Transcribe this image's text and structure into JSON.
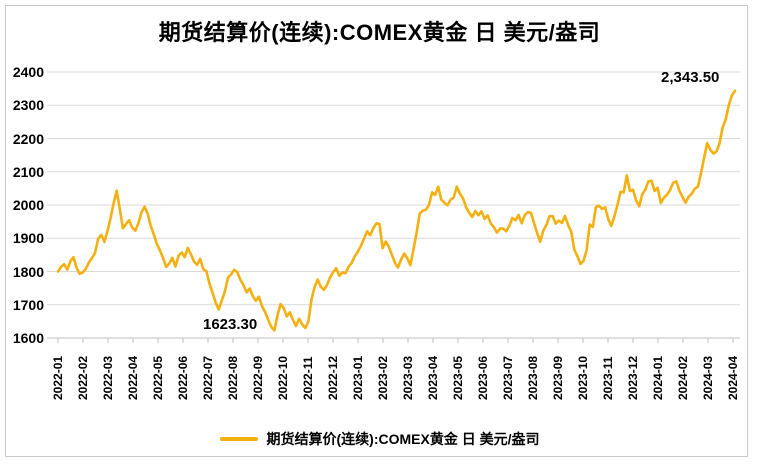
{
  "window": {
    "background": "#ffffff",
    "frame_border_color": "#c8c8c8"
  },
  "title": "期货结算价(连续):COMEX黄金 日 美元/盎司",
  "legend": {
    "label": "期货结算价(连续):COMEX黄金 日 美元/盎司"
  },
  "chart_data": {
    "type": "line",
    "title": "期货结算价(连续):COMEX黄金 日 美元/盎司",
    "xlabel": "",
    "ylabel": "",
    "ylim": [
      1600,
      2400
    ],
    "y_ticks": [
      1600,
      1700,
      1800,
      1900,
      2000,
      2100,
      2200,
      2300,
      2400
    ],
    "grid": "horizontal",
    "grid_color": "#d9d9d9",
    "axis_color": "#bfbfbf",
    "legend_position": "bottom",
    "x_tick_labels": [
      "2022-01",
      "2022-02",
      "2022-03",
      "2022-04",
      "2022-05",
      "2022-06",
      "2022-07",
      "2022-08",
      "2022-09",
      "2022-10",
      "2022-11",
      "2022-12",
      "2023-01",
      "2023-02",
      "2023-03",
      "2023-04",
      "2023-05",
      "2023-06",
      "2023-07",
      "2023-08",
      "2023-09",
      "2023-10",
      "2023-11",
      "2023-12",
      "2024-01",
      "2024-02",
      "2024-03",
      "2024-04"
    ],
    "points_per_month": 8,
    "series": [
      {
        "name": "期货结算价(连续):COMEX黄金 日 美元/盎司",
        "color": "#F4B011",
        "values": [
          1800,
          1814,
          1822,
          1806,
          1831,
          1843,
          1812,
          1793,
          1797,
          1808,
          1827,
          1841,
          1856,
          1899,
          1910,
          1889,
          1922,
          1961,
          2005,
          2043,
          1988,
          1930,
          1943,
          1954,
          1932,
          1923,
          1945,
          1978,
          1995,
          1974,
          1938,
          1911,
          1883,
          1863,
          1841,
          1814,
          1824,
          1841,
          1815,
          1848,
          1857,
          1843,
          1871,
          1852,
          1830,
          1820,
          1838,
          1807,
          1801,
          1763,
          1736,
          1706,
          1686,
          1713,
          1740,
          1782,
          1791,
          1805,
          1798,
          1775,
          1759,
          1737,
          1749,
          1726,
          1712,
          1724,
          1696,
          1678,
          1655,
          1633,
          1623.3,
          1668,
          1702,
          1690,
          1665,
          1677,
          1655,
          1636,
          1658,
          1641,
          1630,
          1650,
          1716,
          1753,
          1776,
          1754,
          1745,
          1759,
          1782,
          1798,
          1810,
          1787,
          1797,
          1795,
          1814,
          1826,
          1846,
          1860,
          1877,
          1899,
          1921,
          1909,
          1930,
          1945,
          1943,
          1870,
          1890,
          1875,
          1850,
          1826,
          1812,
          1836,
          1854,
          1840,
          1819,
          1867,
          1916,
          1974,
          1983,
          1986,
          2000,
          2038,
          2030,
          2055,
          2016,
          2007,
          1999,
          2016,
          2023,
          2055,
          2034,
          2020,
          1993,
          1977,
          1964,
          1982,
          1969,
          1981,
          1958,
          1969,
          1944,
          1933,
          1917,
          1929,
          1929,
          1921,
          1937,
          1961,
          1954,
          1970,
          1945,
          1970,
          1979,
          1976,
          1945,
          1915,
          1890,
          1923,
          1940,
          1966,
          1967,
          1944,
          1953,
          1946,
          1967,
          1940,
          1920,
          1866,
          1847,
          1823,
          1832,
          1864,
          1941,
          1934,
          1994,
          1998,
          1988,
          1993,
          1957,
          1937,
          1966,
          2001,
          2040,
          2038,
          2089,
          2042,
          2046,
          2014,
          1996,
          2033,
          2047,
          2071,
          2073,
          2042,
          2052,
          2006,
          2022,
          2031,
          2045,
          2067,
          2071,
          2043,
          2025,
          2007,
          2024,
          2034,
          2049,
          2055,
          2096,
          2142,
          2186,
          2166,
          2155,
          2161,
          2185,
          2233,
          2257,
          2300,
          2330,
          2343.5
        ]
      }
    ],
    "annotations": [
      {
        "text": "1623.30",
        "value": 1623.3,
        "anchor": "2022-09/10 low"
      },
      {
        "text": "2,343.50",
        "value": 2343.5,
        "anchor": "2024-04 last point"
      }
    ]
  }
}
